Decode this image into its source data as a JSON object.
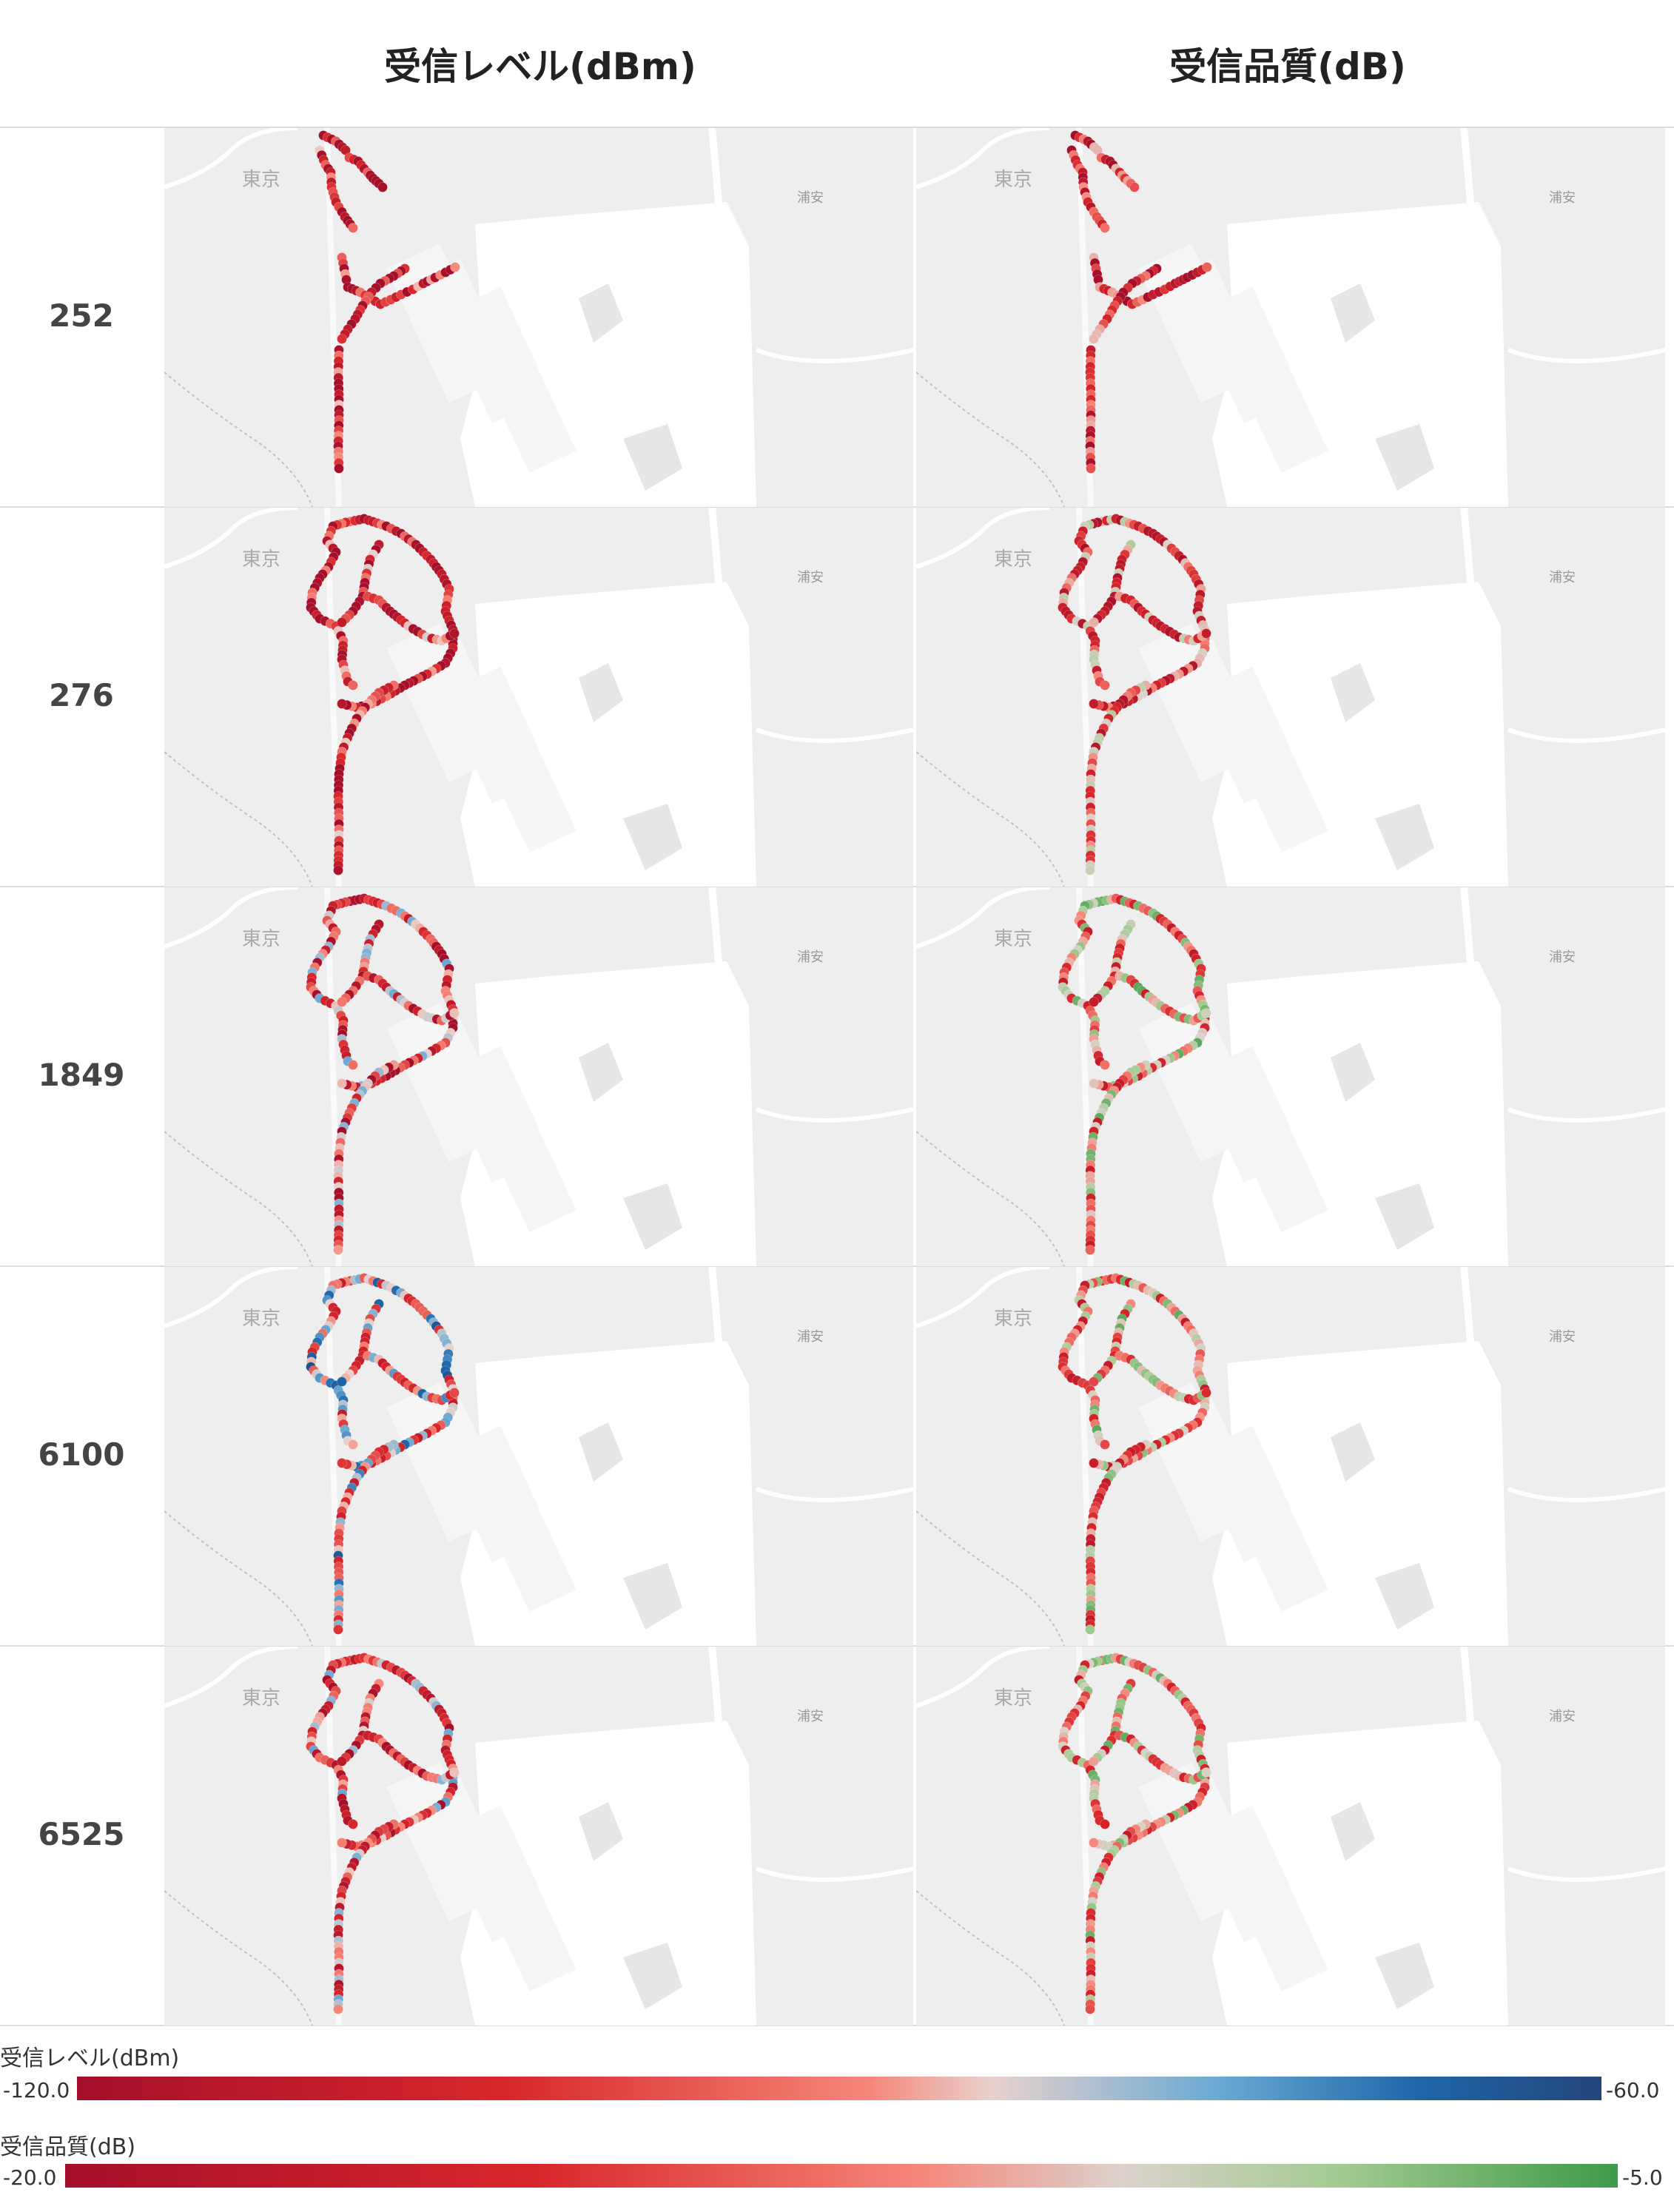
{
  "columns": {
    "level_title": "受信レベル(dBm)",
    "quality_title": "受信品質(dB)"
  },
  "rows": [
    {
      "label": "252"
    },
    {
      "label": "276"
    },
    {
      "label": "1849"
    },
    {
      "label": "6100"
    },
    {
      "label": "6525"
    }
  ],
  "map_labels": {
    "tokyo": "東京",
    "urayasu": "浦安"
  },
  "legends": {
    "level": {
      "title": "受信レベル(dBm)",
      "min": "-120.0",
      "max": "-60.0"
    },
    "quality": {
      "title": "受信品質(dB)",
      "min": "-20.0",
      "max": "-5.0"
    }
  },
  "colors": {
    "level_low": "#a50f2a",
    "level_mid": "#e8d2cd",
    "level_high": "#24457a",
    "quality_low": "#a50f2a",
    "quality_mid": "#dcd2cc",
    "quality_high": "#3f9a48",
    "map_land": "#eeeeee",
    "map_water": "#ffffff"
  }
}
